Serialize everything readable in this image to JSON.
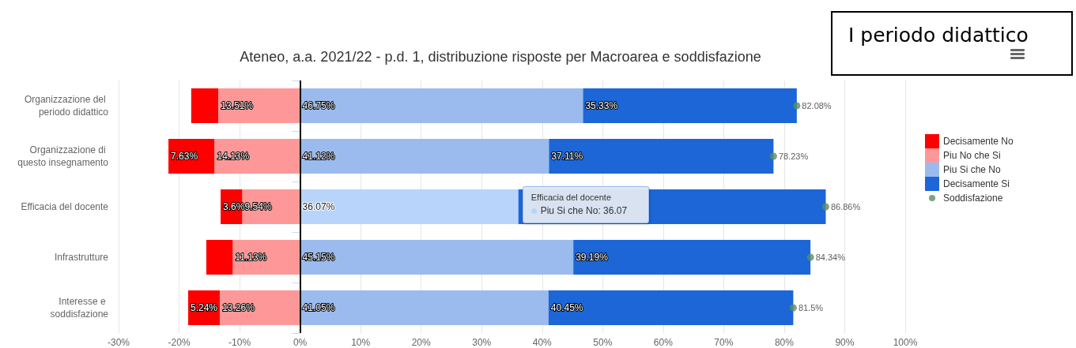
{
  "chart_data": {
    "type": "bar",
    "orientation": "horizontal",
    "stacked": true,
    "title": "Ateneo, a.a. 2021/22 - p.d. 1, distribuzione risposte per Macroarea e soddisfazione",
    "categories": [
      "Organizzazione del periodo didattico",
      "Organizzazione di questo insegnamento",
      "Efficacia del docente",
      "Infrastrutture",
      "Interesse e soddisfazione"
    ],
    "series": [
      {
        "name": "Decisamente No",
        "color": "#ff0000",
        "base": [
          -18.0,
          -21.76,
          -13.14,
          -15.5,
          -18.5
        ],
        "values": [
          4.5,
          7.63,
          3.6,
          4.4,
          5.24
        ],
        "value_labels": [
          null,
          "7.63%",
          "3.6%",
          null,
          "5.24%"
        ]
      },
      {
        "name": "Piu No che Si",
        "color": "#fe9898",
        "base": [
          -13.51,
          -14.13,
          -9.54,
          -11.13,
          -13.26
        ],
        "values": [
          13.51,
          14.13,
          9.54,
          11.13,
          13.26
        ],
        "value_labels": [
          "13.51%",
          "14.13%",
          "9.54%",
          "11.13%",
          "13.26%"
        ]
      },
      {
        "name": "Piu Si che No",
        "color": "#9bbbee",
        "colors": [
          "#9bbbee",
          "#9bbbee",
          "#b8d4fb",
          "#9bbbee",
          "#9bbbee"
        ],
        "values": [
          46.75,
          41.12,
          36.07,
          45.15,
          41.05
        ],
        "value_labels": [
          "46.75%",
          "41.12%",
          "36.07%",
          "45.15%",
          "41.05%"
        ]
      },
      {
        "name": "Decisamente Si",
        "color": "#1c66d7",
        "values": [
          35.33,
          37.11,
          50.8,
          39.19,
          40.45
        ],
        "value_labels": [
          "35.33%",
          "37.11%",
          null,
          "39.19%",
          "40.45%"
        ]
      },
      {
        "name": "Soddisfazione",
        "type": "scatter",
        "color": "#5e8c63",
        "values": [
          82.08,
          78.23,
          86.86,
          84.34,
          81.5
        ],
        "value_labels": [
          "82.08%",
          "78.23%",
          "86.86%",
          "84.34%",
          "81.5%"
        ]
      }
    ],
    "marker": "circle",
    "xlim": [
      -30,
      100
    ],
    "xticks": [
      {
        "value": -30,
        "label": "-30%"
      },
      {
        "value": -20,
        "label": "-20%"
      },
      {
        "value": -10,
        "label": "-10%"
      },
      {
        "value": 0,
        "label": "0%"
      },
      {
        "value": 10,
        "label": "10%"
      },
      {
        "value": 20,
        "label": "20%"
      },
      {
        "value": 30,
        "label": "30%"
      },
      {
        "value": 40,
        "label": "40%"
      },
      {
        "value": 50,
        "label": "50%"
      },
      {
        "value": 60,
        "label": "60%"
      },
      {
        "value": 70,
        "label": "70%"
      },
      {
        "value": 80,
        "label": "80%"
      },
      {
        "value": 90,
        "label": "90%"
      },
      {
        "value": 100,
        "label": "100%"
      }
    ],
    "grid": "x",
    "legend": "right",
    "ref_lines": [
      {
        "axis": "x",
        "value": 0,
        "color": "#000000"
      }
    ],
    "annotations": [
      "I periodo didattico",
      {
        "text": "Efficacia del docente\nPiu Si che No: 36.07",
        "x": 36.07,
        "y": "Efficacia del docente"
      }
    ]
  }
}
